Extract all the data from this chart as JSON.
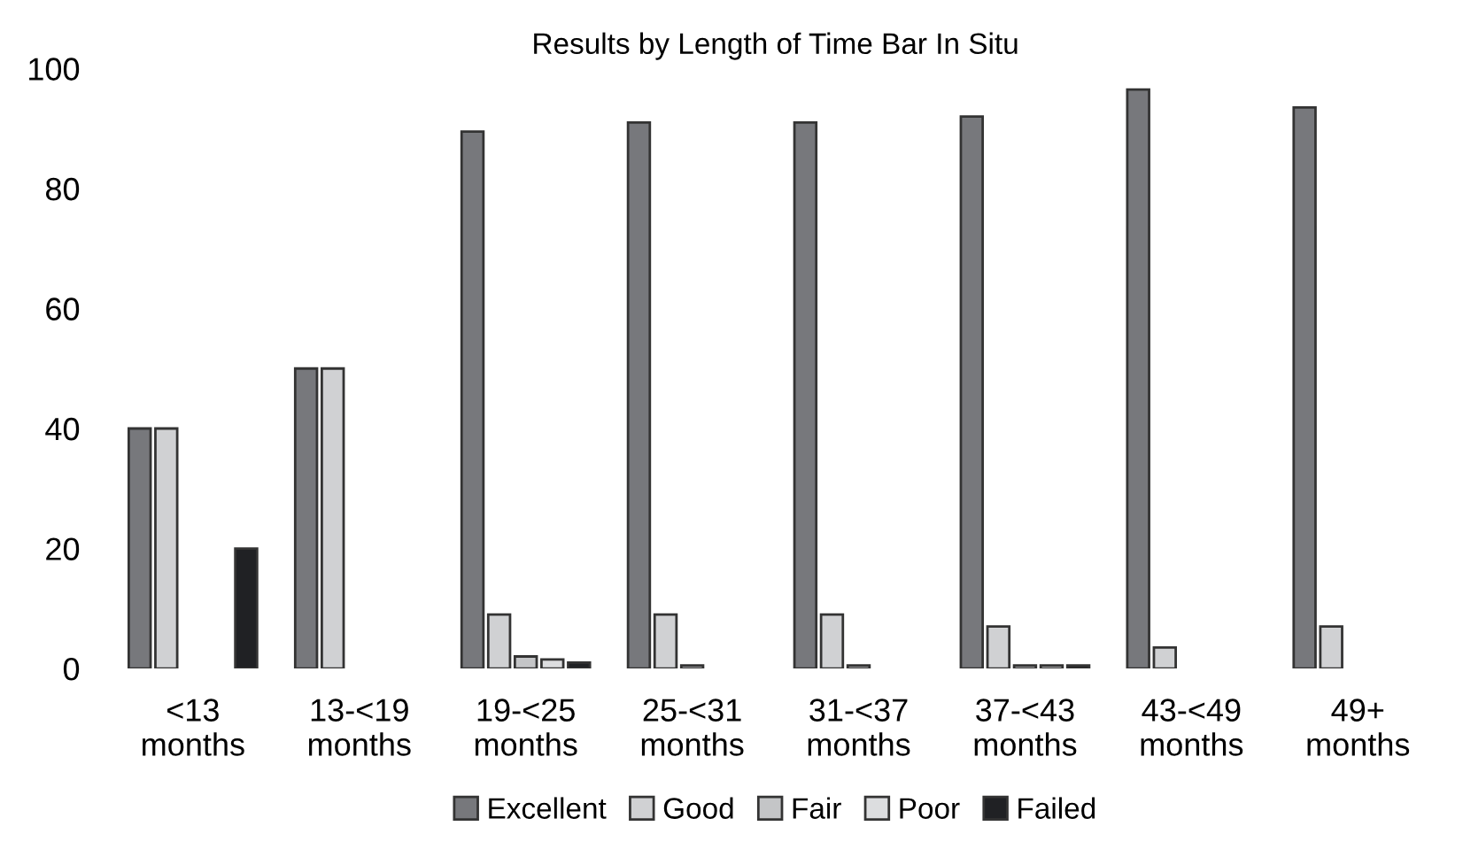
{
  "chart_data": {
    "type": "bar",
    "title": "Results by Length of Time Bar In Situ",
    "categories": [
      "<13\nmonths",
      "13-<19\nmonths",
      "19-<25\nmonths",
      "25-<31\nmonths",
      "31-<37\nmonths",
      "37-<43\nmonths",
      "43-<49\nmonths",
      "49+\nmonths"
    ],
    "series": [
      {
        "name": "Excellent",
        "color": "#77787c",
        "values": [
          40,
          50,
          89.5,
          91,
          91,
          92,
          96.5,
          93.5
        ]
      },
      {
        "name": "Good",
        "color": "#d0d1d3",
        "values": [
          40,
          50,
          9,
          9,
          9,
          7,
          3.5,
          7
        ]
      },
      {
        "name": "Fair",
        "color": "#c4c5c7",
        "values": [
          null,
          null,
          2,
          0.5,
          0.5,
          0.5,
          null,
          null
        ]
      },
      {
        "name": "Poor",
        "color": "#dcdddf",
        "values": [
          null,
          null,
          1.5,
          null,
          null,
          0.5,
          null,
          null
        ]
      },
      {
        "name": "Failed",
        "color": "#202124",
        "values": [
          20,
          null,
          1,
          null,
          null,
          0.5,
          null,
          null
        ]
      }
    ],
    "ylim": [
      0,
      100
    ],
    "yticks": [
      0,
      20,
      40,
      60,
      80,
      100
    ],
    "grid": false,
    "legend": "bottom"
  }
}
